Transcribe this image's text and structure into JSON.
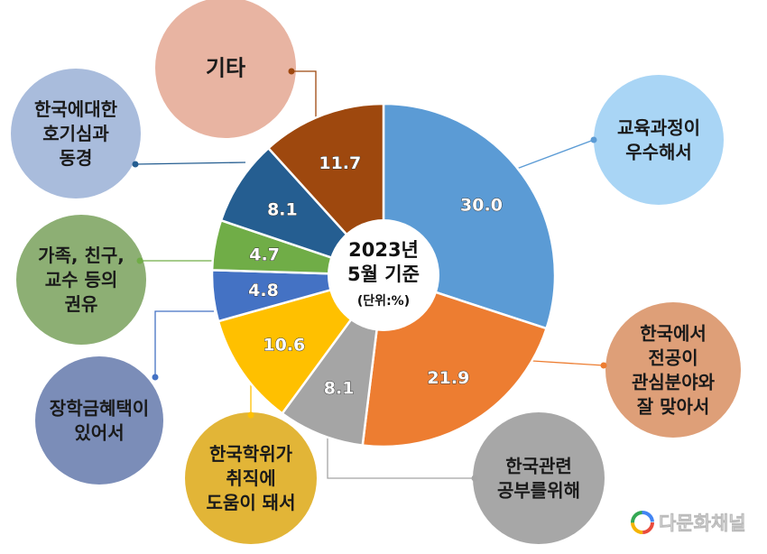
{
  "chart_data": {
    "type": "pie",
    "center_label": {
      "line1": "2023년",
      "line2": "5월 기준",
      "unit": "(단위:%)"
    },
    "slices": [
      {
        "label": "교육과정이 우수해서",
        "lines": [
          "교육과정이",
          "우수해서"
        ],
        "value": 30.0,
        "value_text": "30.0",
        "color": "#5B9BD5",
        "bubble_color": "#A9D5F5"
      },
      {
        "label": "한국에서 전공이 관심분야와 잘 맞아서",
        "lines": [
          "한국에서",
          "전공이",
          "관심분야와",
          "잘 맞아서"
        ],
        "value": 21.9,
        "value_text": "21.9",
        "color": "#ED7D31",
        "bubble_color": "#DE9F78"
      },
      {
        "label": "한국관련 공부를위해",
        "lines": [
          "한국관련",
          "공부를위해"
        ],
        "value": 8.1,
        "value_text": "8.1",
        "color": "#A5A5A5",
        "bubble_color": "#A7A7A7"
      },
      {
        "label": "한국학위가 취직에 도움이 돼서",
        "lines": [
          "한국학위가",
          "취직에",
          "도움이 돼서"
        ],
        "value": 10.6,
        "value_text": "10.6",
        "color": "#FFC000",
        "bubble_color": "#E2B537"
      },
      {
        "label": "장학금혜택이 있어서",
        "lines": [
          "장학금혜택이",
          "있어서"
        ],
        "value": 4.8,
        "value_text": "4.8",
        "color": "#4472C4",
        "bubble_color": "#7B8DB8"
      },
      {
        "label": "가족, 친구, 교수 등의 권유",
        "lines": [
          "가족, 친구,",
          "교수 등의",
          "권유"
        ],
        "value": 4.7,
        "value_text": "4.7",
        "color": "#70AD47",
        "bubble_color": "#8DAF74"
      },
      {
        "label": "한국에대한 호기심과 동경",
        "lines": [
          "한국에대한",
          "호기심과",
          "동경"
        ],
        "value": 8.1,
        "value_text": "8.1",
        "color": "#255E91",
        "bubble_color": "#A9BCDC"
      },
      {
        "label": "기타",
        "lines": [
          "기타"
        ],
        "value": 11.7,
        "value_text": "11.7",
        "color": "#9E480E",
        "bubble_color": "#E8B4A2"
      }
    ]
  },
  "watermark": {
    "text": "다문화채널"
  }
}
